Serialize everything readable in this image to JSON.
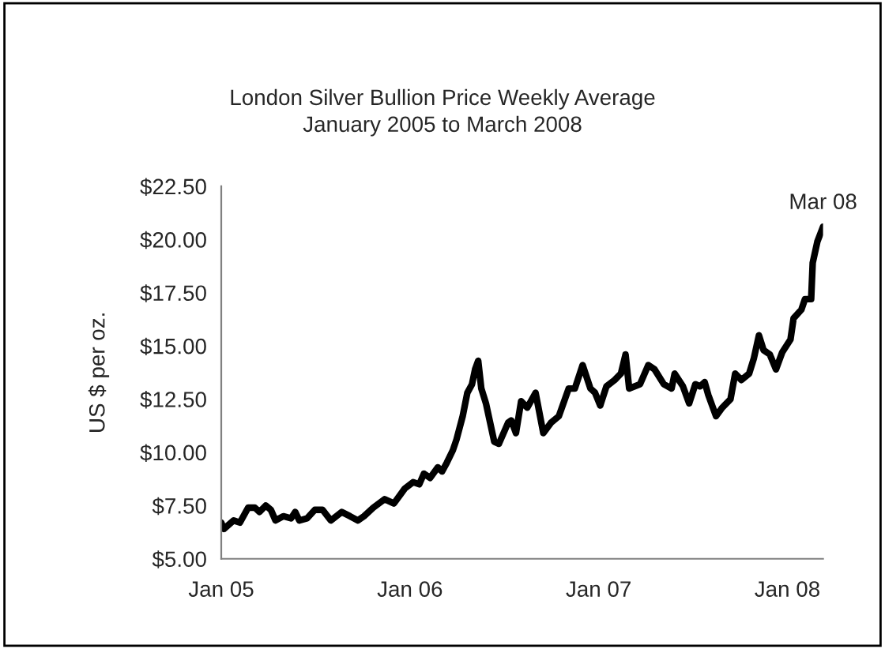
{
  "chart_data": {
    "type": "line",
    "title": "London Silver Bullion Price Weekly Average",
    "subtitle": "January 2005 to March 2008",
    "ylabel": "US $ per oz.",
    "x": [
      "2005-01-01",
      "2005-01-06",
      "2005-01-25",
      "2005-02-06",
      "2005-02-22",
      "2005-03-07",
      "2005-03-16",
      "2005-03-28",
      "2005-04-07",
      "2005-04-16",
      "2005-05-01",
      "2005-05-16",
      "2005-05-24",
      "2005-06-01",
      "2005-06-16",
      "2005-07-01",
      "2005-07-16",
      "2005-08-01",
      "2005-08-22",
      "2005-09-07",
      "2005-09-22",
      "2005-10-04",
      "2005-10-22",
      "2005-11-13",
      "2005-12-01",
      "2005-12-22",
      "2006-01-07",
      "2006-01-19",
      "2006-01-28",
      "2006-02-09",
      "2006-02-24",
      "2006-03-04",
      "2006-03-13",
      "2006-03-25",
      "2006-04-01",
      "2006-04-13",
      "2006-04-22",
      "2006-05-01",
      "2006-05-07",
      "2006-05-13",
      "2006-05-19",
      "2006-05-28",
      "2006-06-13",
      "2006-06-22",
      "2006-07-10",
      "2006-07-16",
      "2006-07-25",
      "2006-08-04",
      "2006-08-16",
      "2006-09-01",
      "2006-09-16",
      "2006-10-01",
      "2006-10-16",
      "2006-11-04",
      "2006-11-16",
      "2006-12-01",
      "2006-12-16",
      "2006-12-25",
      "2007-01-04",
      "2007-01-16",
      "2007-02-01",
      "2007-02-13",
      "2007-02-22",
      "2007-03-01",
      "2007-03-22",
      "2007-04-07",
      "2007-04-19",
      "2007-05-07",
      "2007-05-22",
      "2007-05-28",
      "2007-06-13",
      "2007-06-25",
      "2007-07-07",
      "2007-07-16",
      "2007-07-25",
      "2007-08-01",
      "2007-08-16",
      "2007-08-28",
      "2007-09-13",
      "2007-09-22",
      "2007-10-04",
      "2007-10-19",
      "2007-10-28",
      "2007-11-07",
      "2007-11-16",
      "2007-11-28",
      "2007-12-10",
      "2007-12-22",
      "2008-01-07",
      "2008-01-13",
      "2008-01-28",
      "2008-02-04",
      "2008-02-16",
      "2008-02-19",
      "2008-02-28",
      "2008-03-10"
    ],
    "series": [
      {
        "color": "#000000",
        "values": [
          6.7,
          6.4,
          6.8,
          6.7,
          7.4,
          7.4,
          7.2,
          7.5,
          7.3,
          6.8,
          7.0,
          6.9,
          7.2,
          6.8,
          6.9,
          7.3,
          7.3,
          6.8,
          7.2,
          7.0,
          6.8,
          7.0,
          7.4,
          7.8,
          7.6,
          8.3,
          8.6,
          8.5,
          9.0,
          8.8,
          9.3,
          9.1,
          9.5,
          10.1,
          10.6,
          11.7,
          12.8,
          13.2,
          13.9,
          14.3,
          13.0,
          12.3,
          10.5,
          10.4,
          11.4,
          11.5,
          10.9,
          12.4,
          12.1,
          12.8,
          10.9,
          11.4,
          11.7,
          13.0,
          13.0,
          14.1,
          13.0,
          12.8,
          12.2,
          13.1,
          13.4,
          13.7,
          14.6,
          13.0,
          13.2,
          14.1,
          13.9,
          13.2,
          13.0,
          13.7,
          13.1,
          12.3,
          13.2,
          13.1,
          13.3,
          12.7,
          11.7,
          12.1,
          12.5,
          13.7,
          13.4,
          13.7,
          14.4,
          15.5,
          14.8,
          14.6,
          13.9,
          14.7,
          15.3,
          16.3,
          16.7,
          17.2,
          17.2,
          18.9,
          19.9,
          20.6
        ]
      }
    ],
    "xlim": [
      "2005-01-01",
      "2008-03-10"
    ],
    "xticks": [
      {
        "value": "2005-01-01",
        "label": "Jan 05"
      },
      {
        "value": "2006-01-01",
        "label": "Jan 06"
      },
      {
        "value": "2007-01-01",
        "label": "Jan 07"
      },
      {
        "value": "2008-01-01",
        "label": "Jan 08"
      }
    ],
    "ylim": [
      5,
      22.5
    ],
    "yticks": [
      {
        "value": 5,
        "label": "$5.00"
      },
      {
        "value": 7.5,
        "label": "$7.50"
      },
      {
        "value": 10,
        "label": "$10.00"
      },
      {
        "value": 12.5,
        "label": "$12.50"
      },
      {
        "value": 15,
        "label": "$15.00"
      },
      {
        "value": 17.5,
        "label": "$17.50"
      },
      {
        "value": 20,
        "label": "$20.00"
      },
      {
        "value": 22.5,
        "label": "$22.50"
      }
    ],
    "annotations": [
      {
        "text": "Mar 08",
        "x": "2008-03-10",
        "y": 20.6
      }
    ],
    "grid": false,
    "marker": "none",
    "line_style": "solid"
  }
}
